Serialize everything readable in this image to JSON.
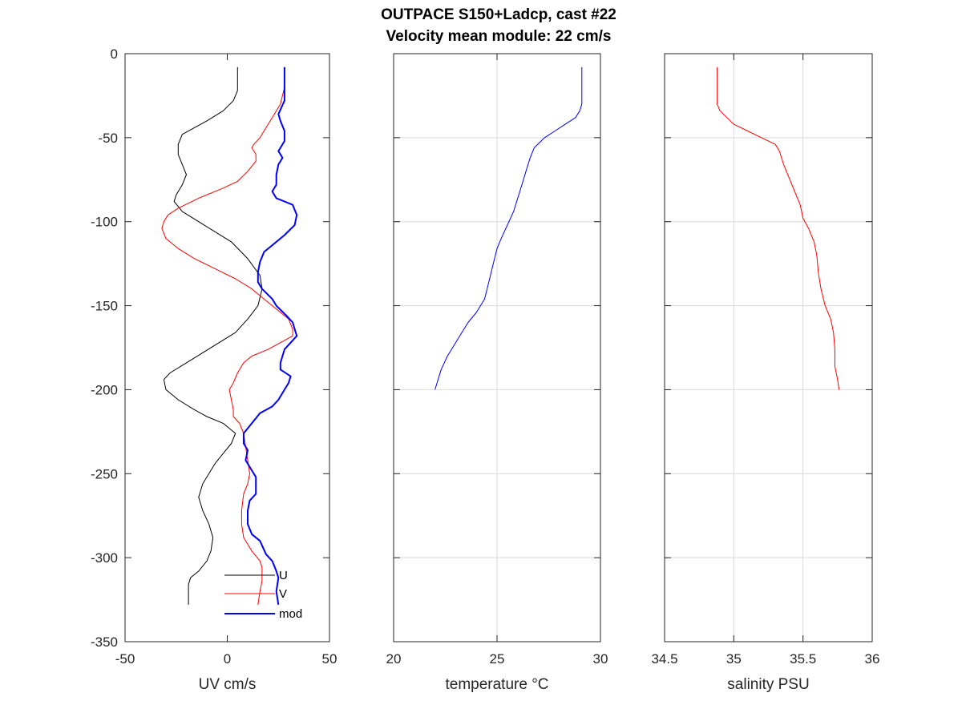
{
  "title_line1": "OUTPACE S150+Ladcp, cast #22",
  "title_line2": "Velocity mean module:  22 cm/s",
  "colors": {
    "axes": "#262626",
    "grid": "#d9d9d9",
    "u": "#000000",
    "v": "#ff0000",
    "mod": "#0000ff",
    "temperature": "#0000ff",
    "salinity": "#ff0000"
  },
  "chart_data": [
    {
      "type": "line",
      "xlabel": "UV cm/s",
      "ylabel": "",
      "xlim": [
        -50,
        50
      ],
      "ylim": [
        -350,
        0
      ],
      "xticks": [
        -50,
        0,
        50
      ],
      "yticks": [
        0,
        -50,
        -100,
        -150,
        -200,
        -250,
        -300,
        -350
      ],
      "grid": false,
      "legend": "bottom-right",
      "series": [
        {
          "name": "U",
          "color": "#000000",
          "linewidth": 1,
          "points": [
            [
              5,
              -8
            ],
            [
              5,
              -22
            ],
            [
              3,
              -28
            ],
            [
              -2,
              -34
            ],
            [
              -10,
              -40
            ],
            [
              -22,
              -48
            ],
            [
              -24,
              -54
            ],
            [
              -24,
              -60
            ],
            [
              -22,
              -66
            ],
            [
              -20,
              -72
            ],
            [
              -22,
              -78
            ],
            [
              -25,
              -84
            ],
            [
              -26,
              -88
            ],
            [
              -22,
              -94
            ],
            [
              -14,
              -100
            ],
            [
              -6,
              -106
            ],
            [
              2,
              -112
            ],
            [
              10,
              -122
            ],
            [
              16,
              -132
            ],
            [
              17,
              -140
            ],
            [
              15,
              -150
            ],
            [
              10,
              -158
            ],
            [
              4,
              -166
            ],
            [
              -4,
              -172
            ],
            [
              -12,
              -178
            ],
            [
              -20,
              -184
            ],
            [
              -28,
              -190
            ],
            [
              -31,
              -194
            ],
            [
              -30,
              -200
            ],
            [
              -24,
              -206
            ],
            [
              -16,
              -212
            ],
            [
              -10,
              -216
            ],
            [
              -2,
              -220
            ],
            [
              4,
              -226
            ],
            [
              2,
              -232
            ],
            [
              -2,
              -238
            ],
            [
              -6,
              -244
            ],
            [
              -9,
              -250
            ],
            [
              -12,
              -256
            ],
            [
              -14,
              -264
            ],
            [
              -12,
              -272
            ],
            [
              -9,
              -280
            ],
            [
              -7,
              -288
            ],
            [
              -8,
              -296
            ],
            [
              -10,
              -302
            ],
            [
              -14,
              -308
            ],
            [
              -18,
              -312
            ],
            [
              -19,
              -316
            ],
            [
              -19,
              -328
            ]
          ]
        },
        {
          "name": "V",
          "color": "#ff0000",
          "linewidth": 1,
          "points": [
            [
              28,
              -8
            ],
            [
              28,
              -20
            ],
            [
              26,
              -30
            ],
            [
              22,
              -38
            ],
            [
              19,
              -44
            ],
            [
              16,
              -50
            ],
            [
              13,
              -54
            ],
            [
              12,
              -56
            ],
            [
              14,
              -60
            ],
            [
              14,
              -64
            ],
            [
              10,
              -70
            ],
            [
              5,
              -76
            ],
            [
              -2,
              -80
            ],
            [
              -14,
              -86
            ],
            [
              -24,
              -92
            ],
            [
              -29,
              -96
            ],
            [
              -31,
              -100
            ],
            [
              -32,
              -104
            ],
            [
              -30,
              -110
            ],
            [
              -24,
              -116
            ],
            [
              -16,
              -122
            ],
            [
              -6,
              -128
            ],
            [
              4,
              -134
            ],
            [
              12,
              -140
            ],
            [
              18,
              -146
            ],
            [
              24,
              -152
            ],
            [
              30,
              -158
            ],
            [
              32,
              -164
            ],
            [
              32,
              -168
            ],
            [
              26,
              -172
            ],
            [
              20,
              -176
            ],
            [
              12,
              -180
            ],
            [
              8,
              -184
            ],
            [
              5,
              -190
            ],
            [
              3,
              -196
            ],
            [
              1,
              -200
            ],
            [
              2,
              -206
            ],
            [
              3,
              -212
            ],
            [
              3,
              -216
            ],
            [
              6,
              -220
            ],
            [
              8,
              -226
            ],
            [
              9,
              -234
            ],
            [
              10,
              -242
            ],
            [
              11,
              -250
            ],
            [
              10,
              -256
            ],
            [
              8,
              -262
            ],
            [
              7,
              -272
            ],
            [
              7,
              -280
            ],
            [
              8,
              -288
            ],
            [
              12,
              -296
            ],
            [
              16,
              -302
            ],
            [
              17,
              -306
            ],
            [
              17,
              -314
            ],
            [
              16,
              -320
            ],
            [
              15,
              -328
            ]
          ]
        },
        {
          "name": "mod",
          "color": "#0000ff",
          "linewidth": 2,
          "points": [
            [
              28,
              -8
            ],
            [
              28,
              -28
            ],
            [
              25,
              -36
            ],
            [
              26,
              -40
            ],
            [
              28,
              -46
            ],
            [
              28,
              -52
            ],
            [
              25,
              -58
            ],
            [
              27,
              -62
            ],
            [
              25,
              -66
            ],
            [
              24,
              -72
            ],
            [
              24,
              -78
            ],
            [
              22,
              -82
            ],
            [
              24,
              -86
            ],
            [
              28,
              -88
            ],
            [
              32,
              -90
            ],
            [
              34,
              -96
            ],
            [
              33,
              -102
            ],
            [
              28,
              -108
            ],
            [
              22,
              -114
            ],
            [
              18,
              -118
            ],
            [
              16,
              -124
            ],
            [
              15,
              -130
            ],
            [
              15,
              -136
            ],
            [
              17,
              -140
            ],
            [
              22,
              -146
            ],
            [
              24,
              -150
            ],
            [
              29,
              -156
            ],
            [
              32,
              -160
            ],
            [
              33,
              -164
            ],
            [
              34,
              -168
            ],
            [
              31,
              -172
            ],
            [
              28,
              -176
            ],
            [
              27,
              -180
            ],
            [
              26,
              -184
            ],
            [
              26,
              -188
            ],
            [
              31,
              -192
            ],
            [
              30,
              -196
            ],
            [
              28,
              -200
            ],
            [
              25,
              -206
            ],
            [
              22,
              -210
            ],
            [
              16,
              -214
            ],
            [
              12,
              -220
            ],
            [
              8,
              -226
            ],
            [
              8,
              -232
            ],
            [
              10,
              -236
            ],
            [
              9,
              -242
            ],
            [
              12,
              -248
            ],
            [
              14,
              -252
            ],
            [
              14,
              -262
            ],
            [
              11,
              -266
            ],
            [
              10,
              -272
            ],
            [
              10,
              -280
            ],
            [
              12,
              -286
            ],
            [
              16,
              -290
            ],
            [
              19,
              -298
            ],
            [
              22,
              -302
            ],
            [
              24,
              -308
            ],
            [
              25,
              -312
            ],
            [
              24,
              -320
            ],
            [
              25,
              -328
            ]
          ]
        }
      ]
    },
    {
      "type": "line",
      "xlabel": "temperature °C",
      "ylabel": "",
      "xlim": [
        20,
        30
      ],
      "ylim": [
        -350,
        0
      ],
      "xticks": [
        20,
        25,
        30
      ],
      "yticks": [
        0,
        -50,
        -100,
        -150,
        -200,
        -250,
        -300,
        -350
      ],
      "grid": true,
      "series": [
        {
          "color": "#0000ff",
          "linewidth": 1,
          "points": [
            [
              29.1,
              -8
            ],
            [
              29.1,
              -30
            ],
            [
              29.0,
              -34
            ],
            [
              28.8,
              -38
            ],
            [
              28.3,
              -42
            ],
            [
              27.8,
              -46
            ],
            [
              27.3,
              -50
            ],
            [
              26.8,
              -56
            ],
            [
              26.6,
              -62
            ],
            [
              26.4,
              -70
            ],
            [
              26.2,
              -78
            ],
            [
              26.0,
              -86
            ],
            [
              25.8,
              -94
            ],
            [
              25.5,
              -102
            ],
            [
              25.2,
              -110
            ],
            [
              25.0,
              -116
            ],
            [
              24.8,
              -126
            ],
            [
              24.6,
              -136
            ],
            [
              24.4,
              -146
            ],
            [
              24.0,
              -154
            ],
            [
              23.6,
              -160
            ],
            [
              23.3,
              -166
            ],
            [
              23.0,
              -172
            ],
            [
              22.6,
              -180
            ],
            [
              22.3,
              -188
            ],
            [
              22.0,
              -200
            ]
          ]
        }
      ]
    },
    {
      "type": "line",
      "xlabel": "salinity PSU",
      "ylabel": "",
      "xlim": [
        34.5,
        36
      ],
      "ylim": [
        -350,
        0
      ],
      "xticks": [
        34.5,
        35,
        35.5,
        36
      ],
      "yticks": [
        0,
        -50,
        -100,
        -150,
        -200,
        -250,
        -300,
        -350
      ],
      "grid": true,
      "series": [
        {
          "color": "#ff0000",
          "linewidth": 1,
          "points": [
            [
              34.88,
              -8
            ],
            [
              34.88,
              -30
            ],
            [
              34.9,
              -34
            ],
            [
              34.95,
              -38
            ],
            [
              35.0,
              -42
            ],
            [
              35.1,
              -46
            ],
            [
              35.2,
              -50
            ],
            [
              35.3,
              -54
            ],
            [
              35.33,
              -58
            ],
            [
              35.36,
              -66
            ],
            [
              35.4,
              -74
            ],
            [
              35.44,
              -82
            ],
            [
              35.48,
              -90
            ],
            [
              35.5,
              -98
            ],
            [
              35.54,
              -104
            ],
            [
              35.58,
              -112
            ],
            [
              35.6,
              -120
            ],
            [
              35.61,
              -130
            ],
            [
              35.63,
              -140
            ],
            [
              35.66,
              -150
            ],
            [
              35.7,
              -158
            ],
            [
              35.72,
              -166
            ],
            [
              35.73,
              -176
            ],
            [
              35.73,
              -186
            ],
            [
              35.75,
              -194
            ],
            [
              35.76,
              -200
            ]
          ]
        }
      ]
    }
  ]
}
